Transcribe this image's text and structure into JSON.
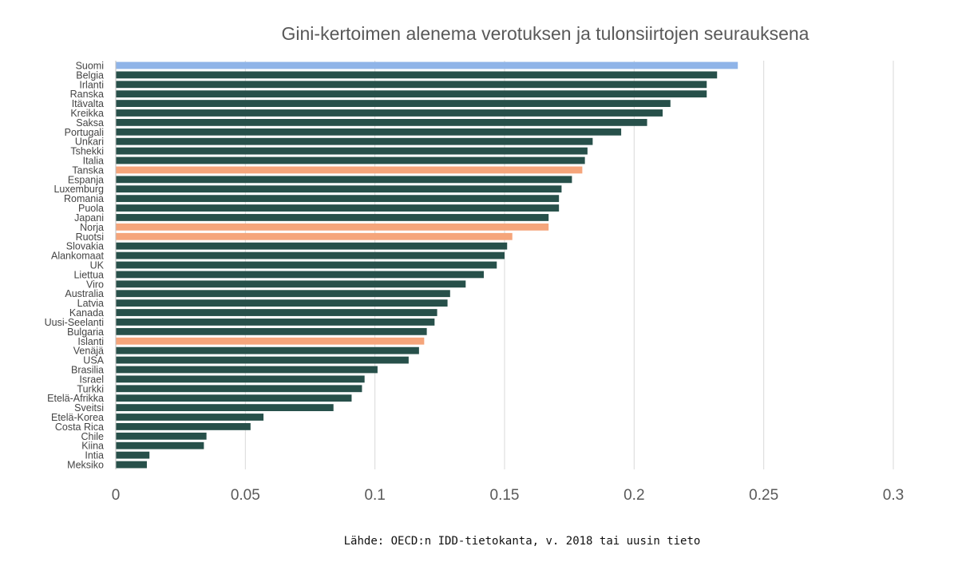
{
  "chart_data": {
    "type": "bar",
    "orientation": "horizontal",
    "title": "Gini-kertoimen alenema verotuksen ja tulonsiirtojen seurauksena",
    "xlabel": "",
    "ylabel": "",
    "xlim": [
      0,
      0.3
    ],
    "x_ticks": [
      0,
      0.05,
      0.1,
      0.15,
      0.2,
      0.25,
      0.3
    ],
    "x_tick_labels": [
      "0",
      "0.05",
      "0.1",
      "0.15",
      "0.2",
      "0.25",
      "0.3"
    ],
    "grid": "vertical",
    "legend": "none",
    "source_note": "Lähde: OECD:n IDD-tietokanta, v. 2018 tai uusin tieto",
    "colors": {
      "default": "#27504a",
      "Suomi": "#8fb4e8",
      "nordic": "#f5a57b",
      "gridline": "#d9d9d9",
      "axis": "#bfbfbf"
    },
    "categories": [
      "Suomi",
      "Belgia",
      "Irlanti",
      "Ranska",
      "Itävalta",
      "Kreikka",
      "Saksa",
      "Portugali",
      "Unkari",
      "Tshekki",
      "Italia",
      "Tanska",
      "Espanja",
      "Luxemburg",
      "Romania",
      "Puola",
      "Japani",
      "Norja",
      "Ruotsi",
      "Slovakia",
      "Alankomaat",
      "UK",
      "Liettua",
      "Viro",
      "Australia",
      "Latvia",
      "Kanada",
      "Uusi-Seelanti",
      "Bulgaria",
      "Islanti",
      "Venäjä",
      "USA",
      "Brasilia",
      "Israel",
      "Turkki",
      "Etelä-Afrikka",
      "Sveitsi",
      "Etelä-Korea",
      "Costa Rica",
      "Chile",
      "Kiina",
      "Intia",
      "Meksiko"
    ],
    "values": [
      0.24,
      0.232,
      0.228,
      0.228,
      0.214,
      0.211,
      0.205,
      0.195,
      0.184,
      0.182,
      0.181,
      0.18,
      0.176,
      0.172,
      0.171,
      0.171,
      0.167,
      0.167,
      0.153,
      0.151,
      0.15,
      0.147,
      0.142,
      0.135,
      0.129,
      0.128,
      0.124,
      0.123,
      0.12,
      0.119,
      0.117,
      0.113,
      0.101,
      0.096,
      0.095,
      0.091,
      0.084,
      0.057,
      0.052,
      0.035,
      0.034,
      0.013,
      0.012
    ],
    "highlight": {
      "Suomi": "Suomi",
      "Tanska": "nordic",
      "Norja": "nordic",
      "Ruotsi": "nordic",
      "Islanti": "nordic"
    }
  }
}
